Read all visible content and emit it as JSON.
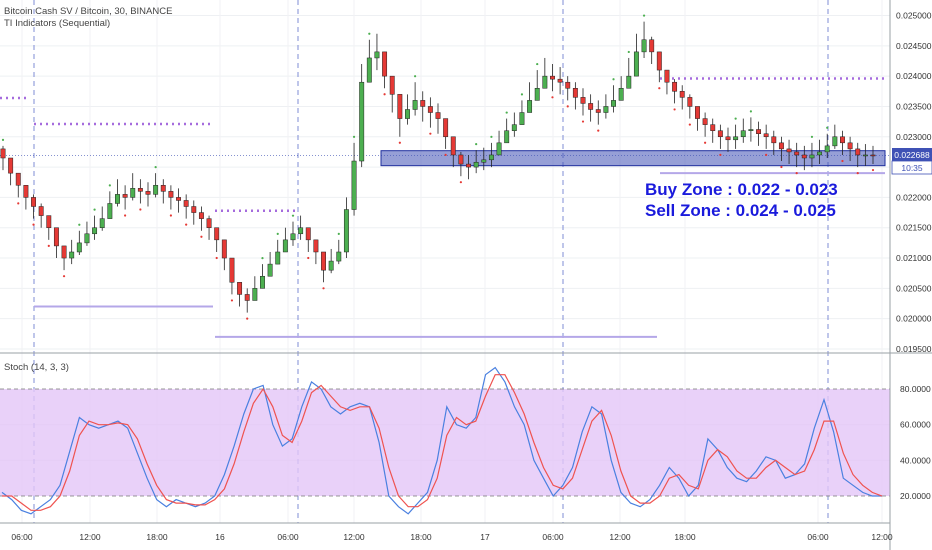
{
  "chart": {
    "title": "Bitcoin Cash SV / Bitcoin, 30, BINANCE",
    "indicator": "TI Indicators (Sequential)",
    "last_price": "0.022688",
    "countdown": "10:35",
    "annotations": [
      "Buy Zone : 0.022 - 0.023",
      "Sell Zone : 0.024 - 0.025"
    ]
  },
  "price_axis": [
    "0.025000",
    "0.024500",
    "0.024000",
    "0.023500",
    "0.023000",
    "0.022500",
    "0.022000",
    "0.021500",
    "0.021000",
    "0.020500",
    "0.020000",
    "0.019500"
  ],
  "time_axis": [
    "06:00",
    "12:00",
    "18:00",
    "16",
    "06:00",
    "12:00",
    "18:00",
    "17",
    "06:00",
    "12:00",
    "18:00",
    "06:00",
    "12:00"
  ],
  "stoch": {
    "label": "Stoch (14, 3, 3)",
    "axis": [
      "80.0000",
      "60.0000",
      "40.0000",
      "20.0000"
    ]
  },
  "colors": {
    "up": "#4caf50",
    "down": "#e53935",
    "zone": "#3f51b5",
    "stoch_k": "#4a80e0",
    "stoch_d": "#ef5350",
    "stoch_band": "#e4c6f7",
    "annotation_text": "#1a1adc",
    "dots": "#a56bdd"
  },
  "chart_data": [
    {
      "type": "candlestick",
      "title": "Bitcoin Cash SV / Bitcoin, 30, BINANCE",
      "ylim": [
        0.0194,
        0.0252
      ],
      "y_ticks": [
        0.0195,
        0.02,
        0.0205,
        0.021,
        0.0215,
        0.022,
        0.0225,
        0.023,
        0.0235,
        0.024,
        0.0245,
        0.025
      ],
      "x_ticks": [
        "06:00",
        "12:00",
        "18:00",
        "16",
        "06:00",
        "12:00",
        "18:00",
        "17",
        "06:00",
        "12:00",
        "18:00",
        "06:00",
        "12:00"
      ],
      "close": [
        0.02265,
        0.0224,
        0.0222,
        0.022,
        0.02185,
        0.0217,
        0.0215,
        0.0212,
        0.021,
        0.0211,
        0.02125,
        0.0214,
        0.0215,
        0.02165,
        0.0219,
        0.02205,
        0.022,
        0.02215,
        0.0221,
        0.02205,
        0.0222,
        0.0221,
        0.022,
        0.02195,
        0.02185,
        0.02175,
        0.02165,
        0.0215,
        0.0213,
        0.021,
        0.0206,
        0.0204,
        0.0203,
        0.0205,
        0.0207,
        0.0209,
        0.0211,
        0.0213,
        0.0214,
        0.0215,
        0.0213,
        0.0211,
        0.0208,
        0.02095,
        0.0211,
        0.0218,
        0.0226,
        0.0239,
        0.0243,
        0.0244,
        0.024,
        0.0237,
        0.0233,
        0.02345,
        0.0236,
        0.0235,
        0.0234,
        0.0233,
        0.023,
        0.0227,
        0.02255,
        0.0225,
        0.02258,
        0.02262,
        0.0227,
        0.0229,
        0.0231,
        0.0232,
        0.0234,
        0.0236,
        0.0238,
        0.024,
        0.02395,
        0.0239,
        0.0238,
        0.02365,
        0.02355,
        0.02345,
        0.0234,
        0.0235,
        0.0236,
        0.0238,
        0.024,
        0.0244,
        0.0246,
        0.0244,
        0.0241,
        0.0239,
        0.02375,
        0.02365,
        0.0235,
        0.0233,
        0.0232,
        0.0231,
        0.023,
        0.02295,
        0.023,
        0.0231,
        0.02312,
        0.02305,
        0.023,
        0.0229,
        0.0228,
        0.02275,
        0.0227,
        0.02265,
        0.0227,
        0.02275,
        0.02285,
        0.023,
        0.0229,
        0.0228,
        0.0227,
        0.0227,
        0.02269
      ],
      "high": [
        0.02285,
        0.0226,
        0.0224,
        0.0222,
        0.02205,
        0.0219,
        0.0217,
        0.0214,
        0.0212,
        0.0213,
        0.02145,
        0.0216,
        0.0217,
        0.02185,
        0.0221,
        0.0223,
        0.0222,
        0.0224,
        0.0223,
        0.02225,
        0.0224,
        0.0223,
        0.0222,
        0.02215,
        0.02205,
        0.02195,
        0.02185,
        0.0217,
        0.0215,
        0.0212,
        0.0208,
        0.0206,
        0.0205,
        0.0207,
        0.0209,
        0.0211,
        0.0213,
        0.0215,
        0.0216,
        0.0217,
        0.0215,
        0.0213,
        0.021,
        0.02115,
        0.0213,
        0.022,
        0.0229,
        0.0242,
        0.0246,
        0.0247,
        0.0243,
        0.024,
        0.0236,
        0.0237,
        0.0239,
        0.02375,
        0.02365,
        0.02355,
        0.02325,
        0.0229,
        0.02275,
        0.0227,
        0.02278,
        0.02282,
        0.0229,
        0.0231,
        0.0233,
        0.0234,
        0.0236,
        0.0239,
        0.0241,
        0.0243,
        0.0242,
        0.02415,
        0.024,
        0.0239,
        0.0238,
        0.0237,
        0.0236,
        0.0237,
        0.02385,
        0.024,
        0.0243,
        0.0247,
        0.0249,
        0.02465,
        0.0243,
        0.0241,
        0.02395,
        0.02385,
        0.0237,
        0.0235,
        0.0234,
        0.0233,
        0.0232,
        0.02315,
        0.0232,
        0.0233,
        0.02332,
        0.02325,
        0.0232,
        0.0231,
        0.023,
        0.02295,
        0.0229,
        0.02285,
        0.0229,
        0.02295,
        0.02305,
        0.0232,
        0.0231,
        0.023,
        0.0229,
        0.02288,
        0.02285
      ],
      "low": [
        0.02245,
        0.0222,
        0.022,
        0.0218,
        0.02165,
        0.0215,
        0.0213,
        0.021,
        0.0208,
        0.0209,
        0.02105,
        0.0212,
        0.0213,
        0.02145,
        0.0217,
        0.02185,
        0.0218,
        0.02195,
        0.0219,
        0.02185,
        0.022,
        0.0219,
        0.0218,
        0.02175,
        0.02165,
        0.02155,
        0.02145,
        0.0213,
        0.0211,
        0.0208,
        0.0204,
        0.0202,
        0.0201,
        0.0203,
        0.0205,
        0.0207,
        0.0209,
        0.0211,
        0.0212,
        0.0213,
        0.0211,
        0.0209,
        0.0206,
        0.02075,
        0.0209,
        0.021,
        0.0217,
        0.0225,
        0.024,
        0.0241,
        0.0238,
        0.0234,
        0.023,
        0.0232,
        0.02335,
        0.02325,
        0.02315,
        0.02305,
        0.0228,
        0.0225,
        0.02235,
        0.0223,
        0.0224,
        0.02245,
        0.0225,
        0.0227,
        0.0229,
        0.023,
        0.0232,
        0.0234,
        0.0236,
        0.0238,
        0.02375,
        0.0237,
        0.0236,
        0.02345,
        0.02335,
        0.02325,
        0.0232,
        0.0233,
        0.0234,
        0.0236,
        0.0238,
        0.024,
        0.0243,
        0.0242,
        0.0239,
        0.0237,
        0.02355,
        0.02345,
        0.0233,
        0.0231,
        0.023,
        0.0229,
        0.0228,
        0.02275,
        0.0228,
        0.0229,
        0.02292,
        0.02285,
        0.0228,
        0.0227,
        0.0226,
        0.02255,
        0.0225,
        0.02245,
        0.0225,
        0.02255,
        0.02265,
        0.0228,
        0.0227,
        0.0226,
        0.0225,
        0.02252,
        0.02255
      ],
      "horizontal_levels": [
        0.02364,
        0.02321,
        0.02178,
        0.02396,
        0.0202,
        0.0197,
        0.0224
      ],
      "buy_zone": [
        0.022,
        0.023
      ],
      "sell_zone": [
        0.024,
        0.025
      ]
    },
    {
      "type": "line",
      "title": "Stoch (14, 3, 3)",
      "ylim": [
        10,
        90
      ],
      "y_ticks": [
        20,
        40,
        60,
        80
      ],
      "band": [
        20,
        80
      ],
      "series": [
        {
          "values": [
            22,
            18,
            12,
            10,
            14,
            18,
            26,
            45,
            64,
            60,
            58,
            60,
            62,
            58,
            44,
            30,
            18,
            14,
            18,
            16,
            14,
            16,
            20,
            32,
            48,
            66,
            80,
            82,
            60,
            48,
            52,
            70,
            84,
            80,
            70,
            66,
            70,
            72,
            70,
            50,
            20,
            14,
            10,
            16,
            22,
            40,
            70,
            60,
            58,
            64,
            88,
            92,
            84,
            70,
            60,
            40,
            30,
            20,
            26,
            36,
            56,
            70,
            66,
            40,
            22,
            16,
            14,
            18,
            26,
            36,
            30,
            20,
            26,
            52,
            46,
            36,
            30,
            28,
            34,
            42,
            40,
            30,
            32,
            38,
            58,
            74,
            56,
            30,
            26,
            22,
            20,
            20
          ]
        },
        {
          "values": [
            20,
            20,
            16,
            12,
            12,
            14,
            20,
            34,
            54,
            62,
            60,
            60,
            61,
            60,
            52,
            38,
            26,
            18,
            16,
            16,
            15,
            15,
            18,
            24,
            38,
            56,
            72,
            80,
            70,
            54,
            50,
            62,
            78,
            82,
            76,
            70,
            68,
            70,
            70,
            58,
            36,
            20,
            14,
            14,
            18,
            30,
            54,
            64,
            60,
            62,
            76,
            88,
            88,
            78,
            66,
            50,
            36,
            26,
            24,
            30,
            46,
            62,
            68,
            54,
            34,
            20,
            16,
            16,
            20,
            30,
            32,
            26,
            24,
            40,
            46,
            42,
            34,
            30,
            30,
            36,
            40,
            36,
            32,
            34,
            46,
            62,
            62,
            44,
            32,
            26,
            22,
            20
          ]
        }
      ]
    }
  ]
}
